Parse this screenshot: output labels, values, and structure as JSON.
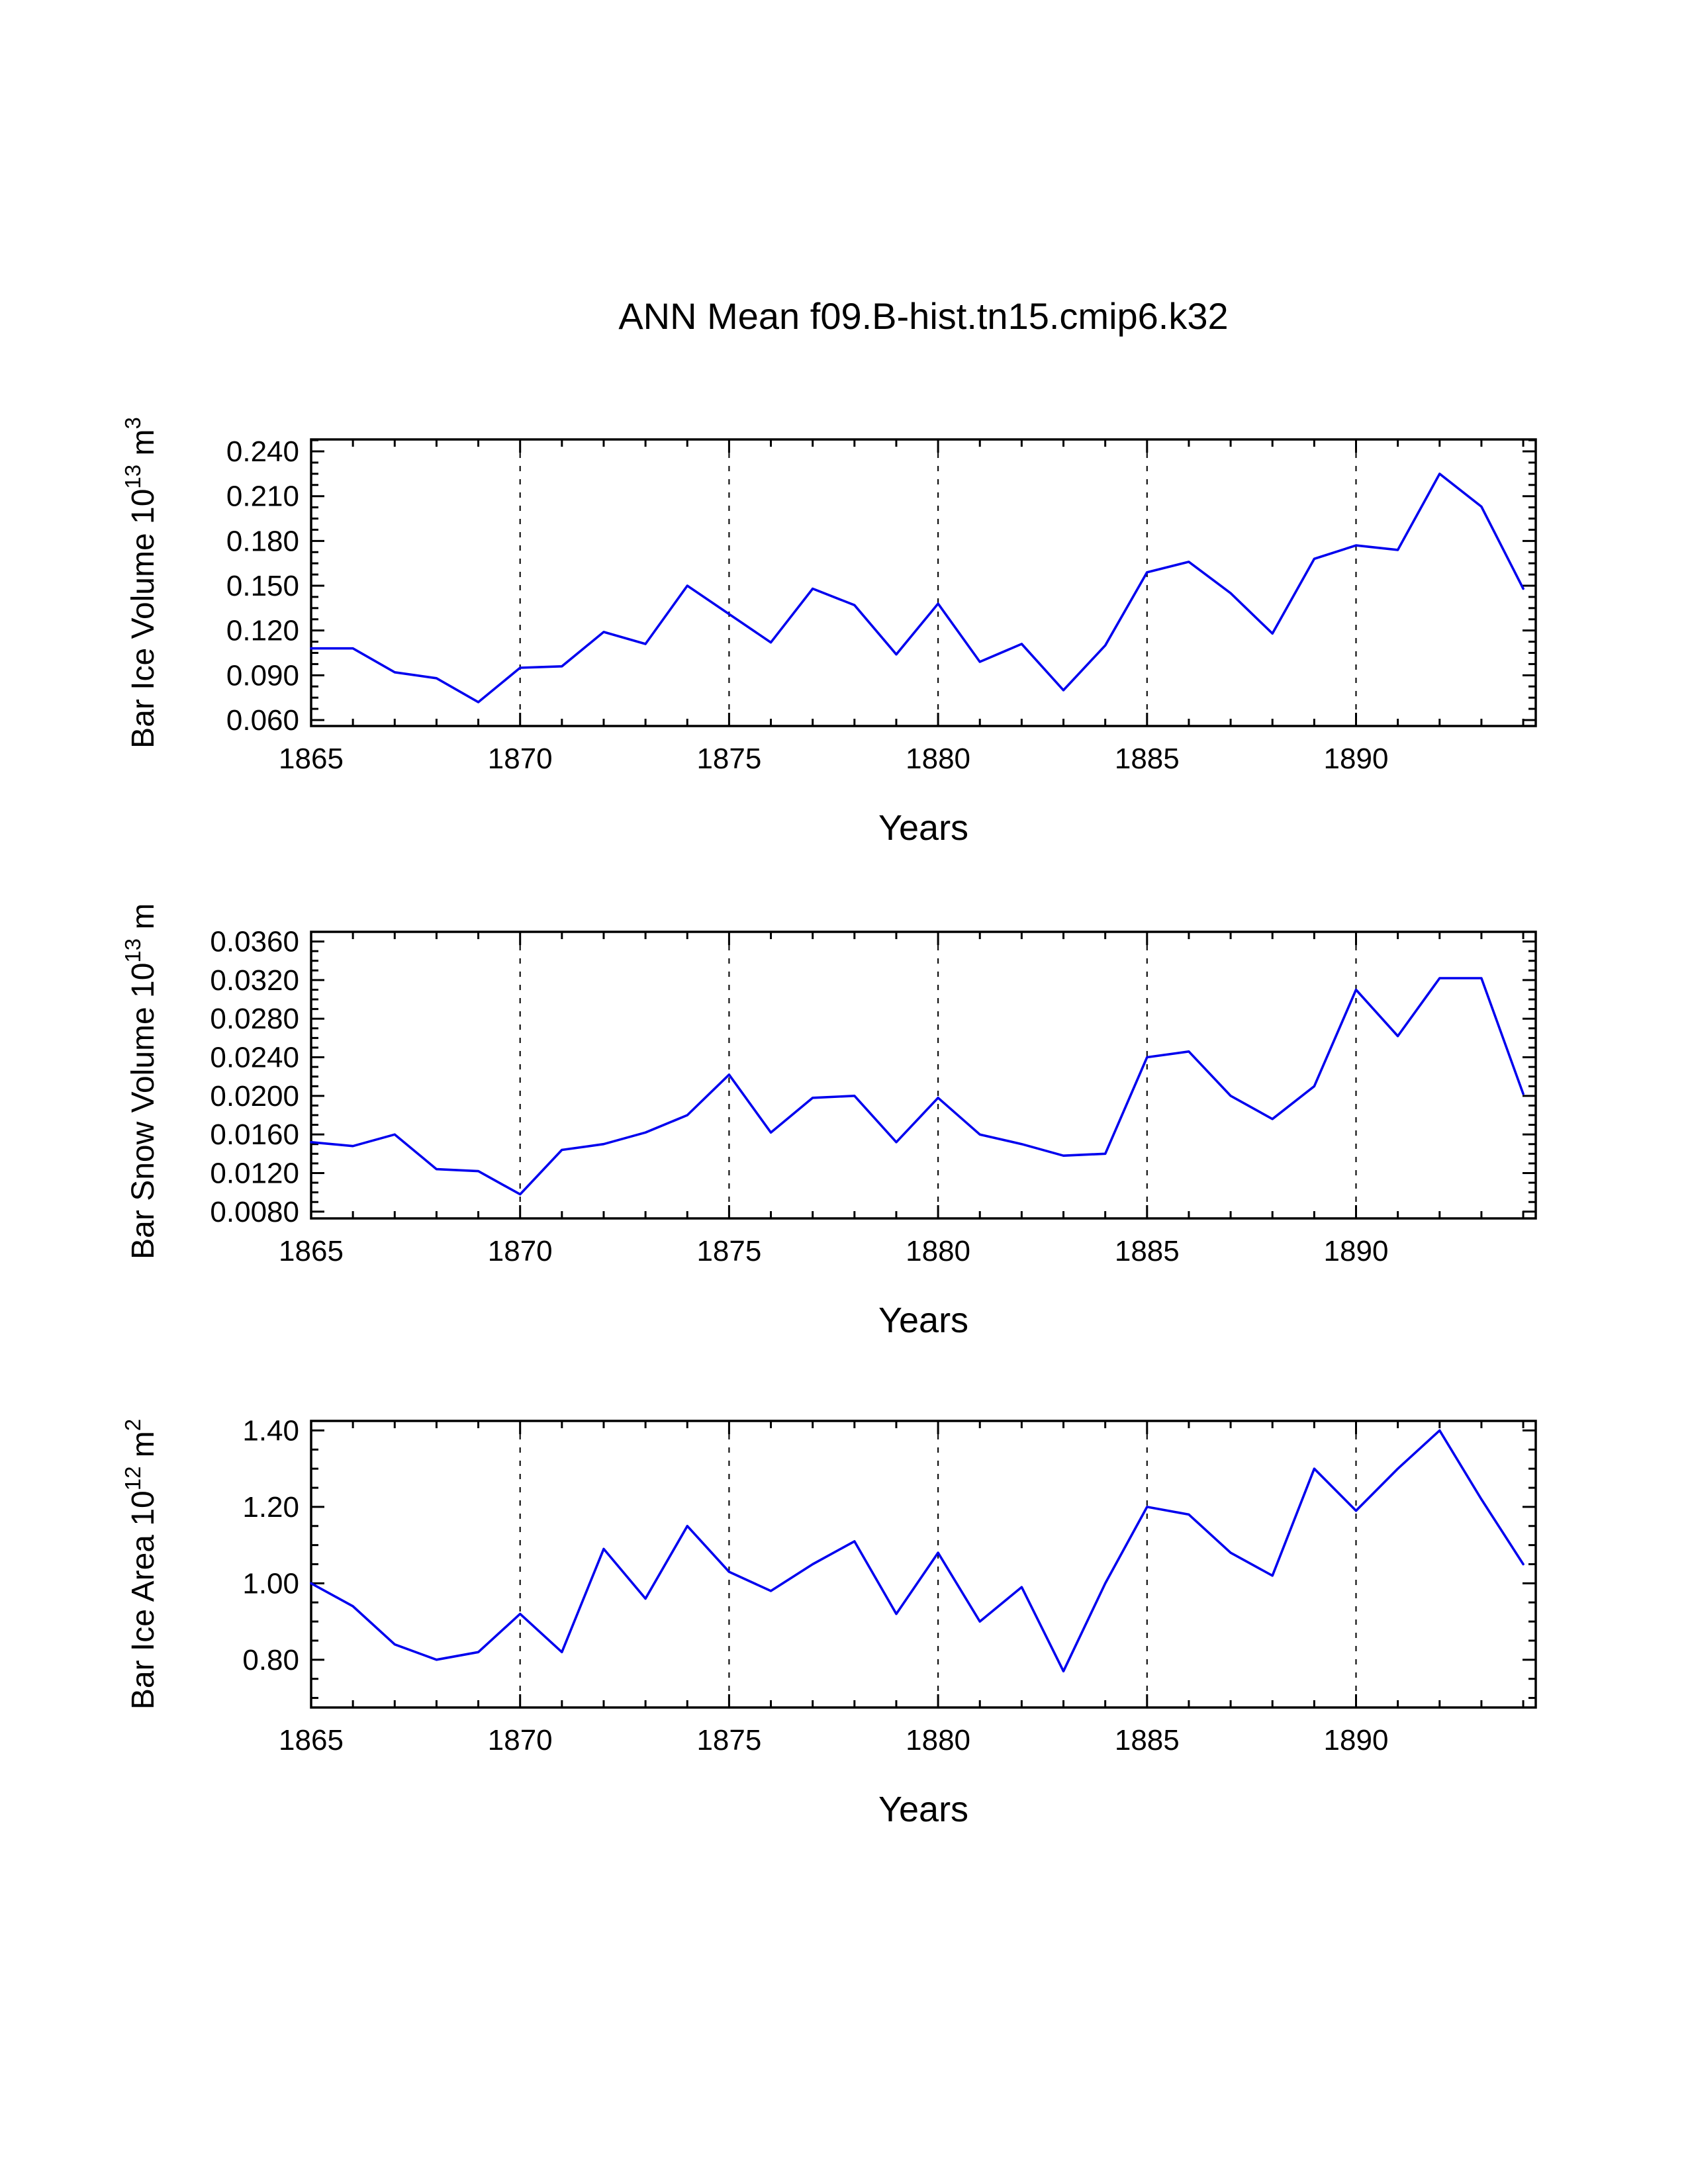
{
  "page": {
    "title": "ANN Mean f09.B-hist.tn15.cmip6.k32",
    "background": "#ffffff"
  },
  "style": {
    "line_color": "#0000ee",
    "axis_color": "#000000",
    "grid_color": "#111111",
    "text_color": "#000000"
  },
  "chart_data": [
    {
      "type": "line",
      "panel": "ice-volume",
      "ylabel_text": "Bar Ice Volume 10^13 m^3",
      "ylabel_rich": [
        {
          "t": "Bar Ice Volume 10"
        },
        {
          "t": "13",
          "sup": true
        },
        {
          "t": " m"
        },
        {
          "t": "3",
          "sup": true
        }
      ],
      "xlabel": "Years",
      "legend": "none",
      "grid": "vertical-dashed",
      "x": [
        1865,
        1866,
        1867,
        1868,
        1869,
        1870,
        1871,
        1872,
        1873,
        1874,
        1875,
        1876,
        1877,
        1878,
        1879,
        1880,
        1881,
        1882,
        1883,
        1884,
        1885,
        1886,
        1887,
        1888,
        1889,
        1890,
        1891,
        1892,
        1893,
        1894
      ],
      "values": [
        0.108,
        0.108,
        0.092,
        0.088,
        0.072,
        0.095,
        0.096,
        0.119,
        0.111,
        0.15,
        0.131,
        0.112,
        0.148,
        0.137,
        0.104,
        0.138,
        0.099,
        0.111,
        0.08,
        0.11,
        0.159,
        0.166,
        0.145,
        0.118,
        0.168,
        0.177,
        0.174,
        0.225,
        0.203,
        0.148
      ],
      "xlim": [
        1865,
        1894.3
      ],
      "ylim": [
        0.056,
        0.248
      ],
      "xticks": [
        1865,
        1870,
        1875,
        1880,
        1885,
        1890
      ],
      "grid_x": [
        1870,
        1875,
        1880,
        1885,
        1890
      ],
      "yticks": [
        0.06,
        0.09,
        0.12,
        0.15,
        0.18,
        0.21,
        0.24
      ],
      "ytick_decimals": 3
    },
    {
      "type": "line",
      "panel": "snow-volume",
      "ylabel_text": "Bar Snow Volume 10^13 m^3",
      "ylabel_rich": [
        {
          "t": "Bar Snow Volume 10"
        },
        {
          "t": "13",
          "sup": true
        },
        {
          "t": " m"
        },
        {
          "t": "3",
          "sup": true
        }
      ],
      "xlabel": "Years",
      "legend": "none",
      "grid": "vertical-dashed",
      "x": [
        1865,
        1866,
        1867,
        1868,
        1869,
        1870,
        1871,
        1872,
        1873,
        1874,
        1875,
        1876,
        1877,
        1878,
        1879,
        1880,
        1881,
        1882,
        1883,
        1884,
        1885,
        1886,
        1887,
        1888,
        1889,
        1890,
        1891,
        1892,
        1893,
        1894
      ],
      "values": [
        0.0152,
        0.0148,
        0.016,
        0.0124,
        0.0122,
        0.0098,
        0.0144,
        0.015,
        0.0162,
        0.018,
        0.0222,
        0.0162,
        0.0198,
        0.02,
        0.0152,
        0.0198,
        0.016,
        0.015,
        0.0138,
        0.014,
        0.024,
        0.0246,
        0.02,
        0.0176,
        0.021,
        0.031,
        0.0262,
        0.0322,
        0.0322,
        0.0202
      ],
      "xlim": [
        1865,
        1894.3
      ],
      "ylim": [
        0.0073,
        0.037
      ],
      "xticks": [
        1865,
        1870,
        1875,
        1880,
        1885,
        1890
      ],
      "grid_x": [
        1870,
        1875,
        1880,
        1885,
        1890
      ],
      "yticks": [
        0.008,
        0.012,
        0.016,
        0.02,
        0.024,
        0.028,
        0.032,
        0.036
      ],
      "ytick_decimals": 4
    },
    {
      "type": "line",
      "panel": "ice-area",
      "ylabel_text": "Bar Ice Area 10^12 m^2",
      "ylabel_rich": [
        {
          "t": "Bar Ice Area 10"
        },
        {
          "t": "12",
          "sup": true
        },
        {
          "t": " m"
        },
        {
          "t": "2",
          "sup": true
        }
      ],
      "xlabel": "Years",
      "legend": "none",
      "grid": "vertical-dashed",
      "x": [
        1865,
        1866,
        1867,
        1868,
        1869,
        1870,
        1871,
        1872,
        1873,
        1874,
        1875,
        1876,
        1877,
        1878,
        1879,
        1880,
        1881,
        1882,
        1883,
        1884,
        1885,
        1886,
        1887,
        1888,
        1889,
        1890,
        1891,
        1892,
        1893,
        1894
      ],
      "values": [
        1.0,
        0.94,
        0.84,
        0.8,
        0.82,
        0.92,
        0.82,
        1.09,
        0.96,
        1.15,
        1.03,
        0.98,
        1.05,
        1.11,
        0.92,
        1.08,
        0.9,
        0.99,
        0.77,
        1.0,
        1.2,
        1.18,
        1.08,
        1.02,
        1.3,
        1.19,
        1.3,
        1.4,
        1.22,
        1.05
      ],
      "xlim": [
        1865,
        1894.3
      ],
      "ylim": [
        0.675,
        1.425
      ],
      "xticks": [
        1865,
        1870,
        1875,
        1880,
        1885,
        1890
      ],
      "grid_x": [
        1870,
        1875,
        1880,
        1885,
        1890
      ],
      "yticks": [
        0.8,
        1.0,
        1.2,
        1.4
      ],
      "ytick_decimals": 2
    }
  ]
}
